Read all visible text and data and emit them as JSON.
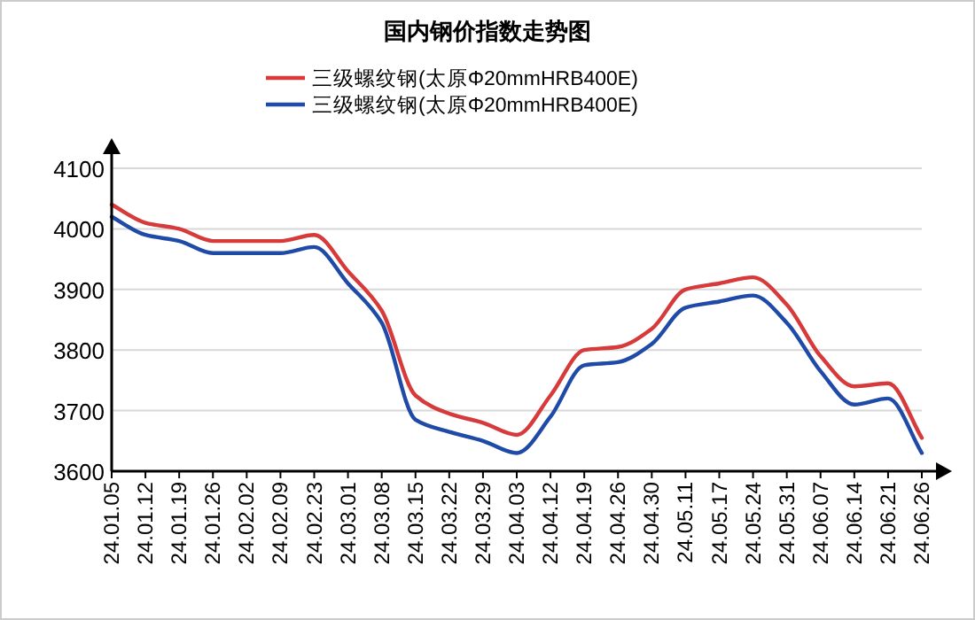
{
  "chart_data": {
    "type": "line",
    "title": "国内钢价指数走势图",
    "categories": [
      "24.01.05",
      "24.01.12",
      "24.01.19",
      "24.01.26",
      "24.02.02",
      "24.02.09",
      "24.02.23",
      "24.03.01",
      "24.03.08",
      "24.03.15",
      "24.03.22",
      "24.03.29",
      "24.04.03",
      "24.04.12",
      "24.04.19",
      "24.04.26",
      "24.04.30",
      "24.05.11",
      "24.05.17",
      "24.05.24",
      "24.05.31",
      "24.06.07",
      "24.06.14",
      "24.06.21",
      "24.06.26"
    ],
    "series": [
      {
        "name": "三级螺纹钢(太原Φ20mmHRB400E)",
        "color": "#d63a3a",
        "values": [
          4040,
          4010,
          4000,
          3980,
          3980,
          3980,
          3990,
          3930,
          3865,
          3725,
          3695,
          3680,
          3660,
          3725,
          3800,
          3805,
          3835,
          3900,
          3910,
          3920,
          3875,
          3790,
          3740,
          3745,
          3655
        ]
      },
      {
        "name": "三级螺纹钢(太原Φ20mmHRB400E)",
        "color": "#1f4aa8",
        "values": [
          4020,
          3990,
          3980,
          3960,
          3960,
          3960,
          3970,
          3910,
          3845,
          3685,
          3665,
          3650,
          3630,
          3690,
          3775,
          3780,
          3810,
          3870,
          3880,
          3890,
          3845,
          3765,
          3710,
          3720,
          3630
        ]
      }
    ],
    "ylim": [
      3600,
      4100
    ],
    "yticks": [
      3600,
      3700,
      3800,
      3900,
      4000,
      4100
    ],
    "grid": "y",
    "legend": "top"
  }
}
